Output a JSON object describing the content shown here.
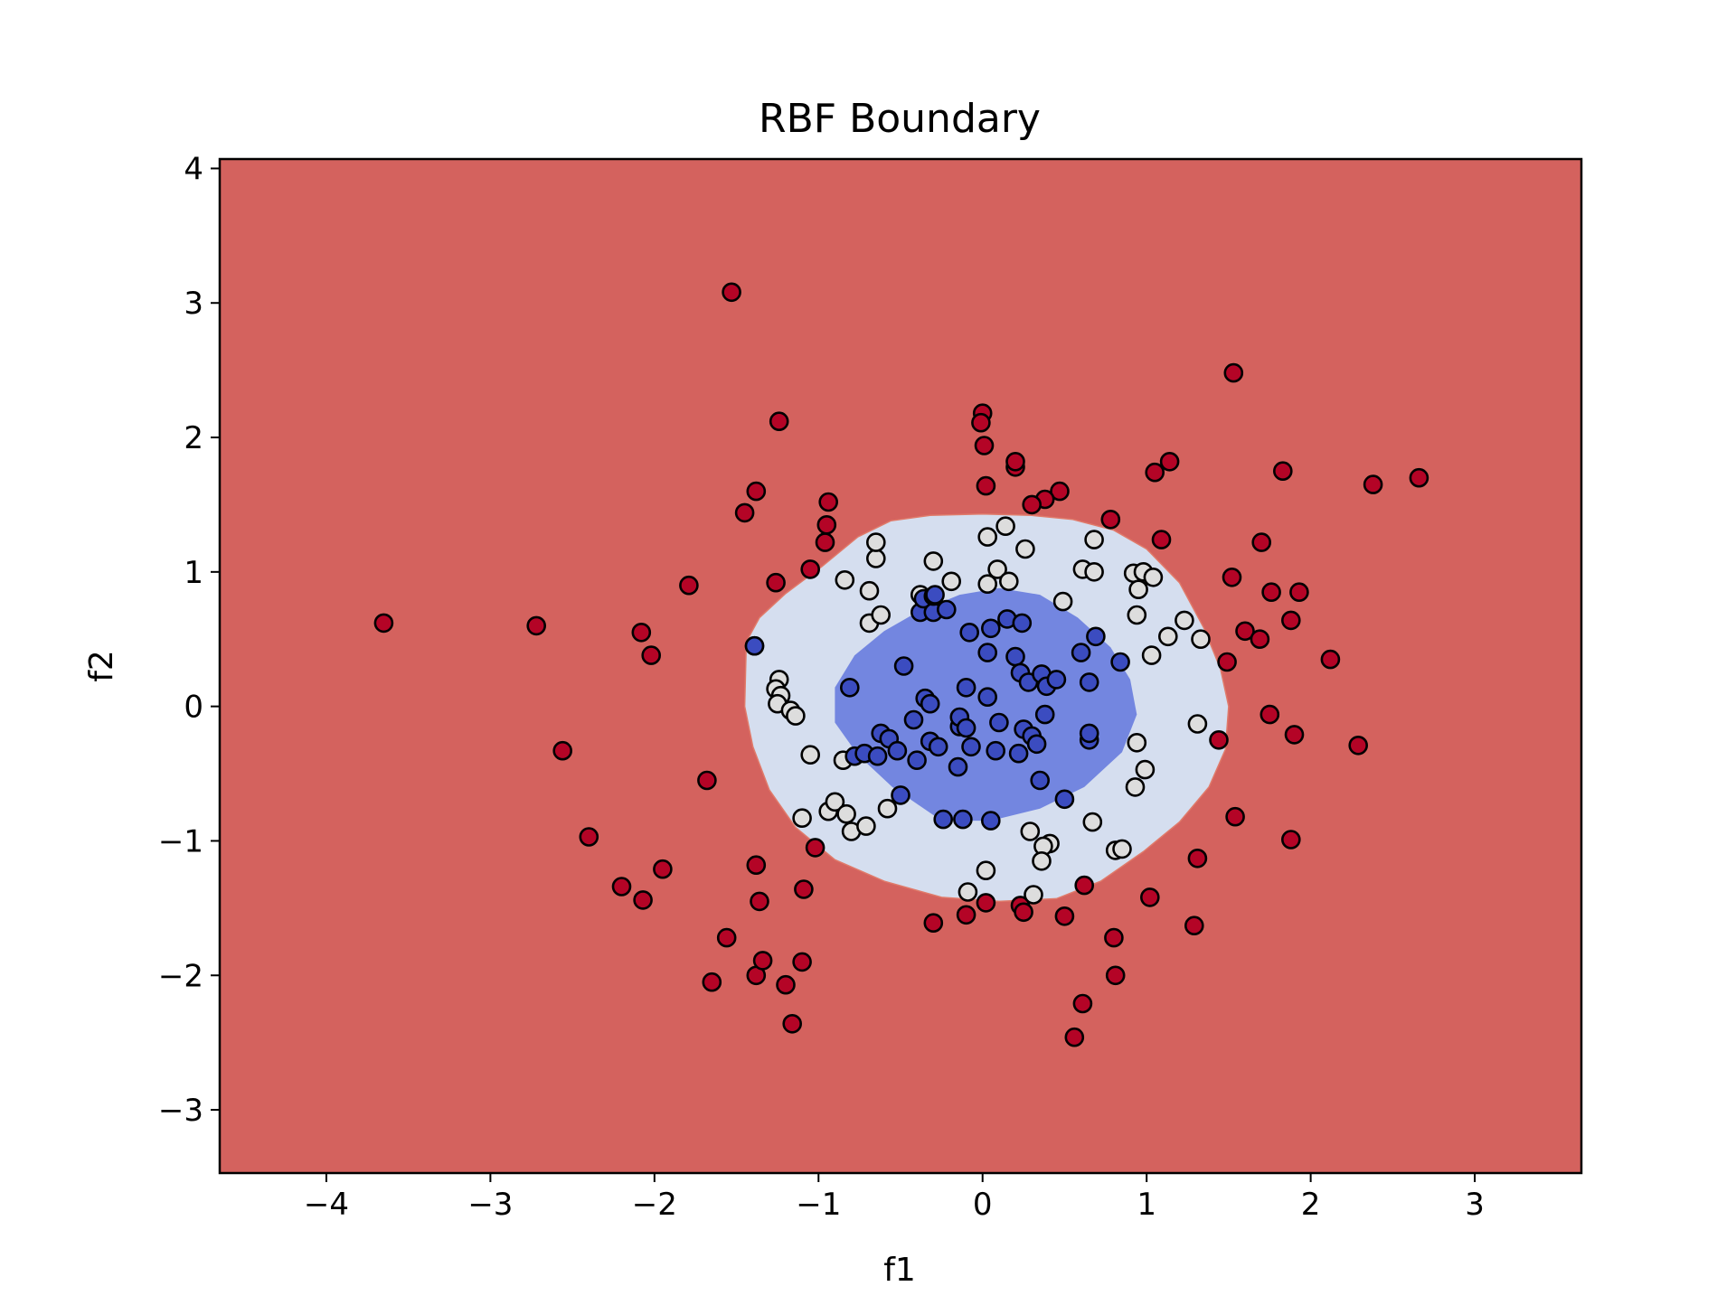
{
  "chart_data": {
    "type": "scatter",
    "title": "RBF Boundary",
    "xlabel": "f1",
    "ylabel": "f2",
    "xlim": [
      -4.65,
      3.65
    ],
    "ylim": [
      -3.47,
      4.07
    ],
    "xticks": [
      -4,
      -3,
      -2,
      -1,
      0,
      1,
      2,
      3
    ],
    "yticks": [
      -3,
      -2,
      -1,
      0,
      1,
      2,
      3,
      4
    ],
    "grid": false,
    "legend": "none",
    "colors": {
      "outer_region": "#d4625e",
      "ring_region": "#d5deef",
      "inner_region": "#7386e0",
      "outer_point": "#b40426",
      "ring_point": "#dddddd",
      "inner_point": "#3b4cc0",
      "point_edge": "#000000"
    },
    "regions": {
      "ring_boundary": [
        [
          -1.44,
          0.48
        ],
        [
          -1.36,
          0.66
        ],
        [
          -1.2,
          0.84
        ],
        [
          -0.98,
          1.04
        ],
        [
          -0.76,
          1.26
        ],
        [
          -0.56,
          1.38
        ],
        [
          -0.32,
          1.42
        ],
        [
          0.0,
          1.43
        ],
        [
          0.3,
          1.42
        ],
        [
          0.55,
          1.39
        ],
        [
          0.8,
          1.31
        ],
        [
          1.0,
          1.17
        ],
        [
          1.2,
          0.92
        ],
        [
          1.35,
          0.58
        ],
        [
          1.45,
          0.28
        ],
        [
          1.5,
          0.0
        ],
        [
          1.48,
          -0.32
        ],
        [
          1.38,
          -0.6
        ],
        [
          1.2,
          -0.86
        ],
        [
          0.98,
          -1.08
        ],
        [
          0.72,
          -1.3
        ],
        [
          0.45,
          -1.43
        ],
        [
          0.1,
          -1.45
        ],
        [
          -0.25,
          -1.42
        ],
        [
          -0.6,
          -1.3
        ],
        [
          -0.9,
          -1.14
        ],
        [
          -1.14,
          -0.9
        ],
        [
          -1.3,
          -0.62
        ],
        [
          -1.4,
          -0.3
        ],
        [
          -1.45,
          0.0
        ]
      ],
      "inner_boundary": [
        [
          -0.9,
          0.14
        ],
        [
          -0.78,
          0.38
        ],
        [
          -0.6,
          0.56
        ],
        [
          -0.4,
          0.7
        ],
        [
          -0.14,
          0.83
        ],
        [
          0.1,
          0.88
        ],
        [
          0.35,
          0.83
        ],
        [
          0.58,
          0.66
        ],
        [
          0.78,
          0.44
        ],
        [
          0.9,
          0.2
        ],
        [
          0.94,
          -0.06
        ],
        [
          0.85,
          -0.34
        ],
        [
          0.62,
          -0.6
        ],
        [
          0.35,
          -0.76
        ],
        [
          0.05,
          -0.85
        ],
        [
          -0.25,
          -0.85
        ],
        [
          -0.55,
          -0.6
        ],
        [
          -0.76,
          -0.36
        ],
        [
          -0.9,
          -0.12
        ]
      ]
    },
    "series": [
      {
        "class": "outer",
        "points": [
          [
            -3.65,
            0.62
          ],
          [
            -2.72,
            0.6
          ],
          [
            -2.56,
            -0.33
          ],
          [
            -2.4,
            -0.97
          ],
          [
            -2.2,
            -1.34
          ],
          [
            -2.07,
            -1.44
          ],
          [
            -1.95,
            -1.21
          ],
          [
            -2.08,
            0.55
          ],
          [
            -2.02,
            0.38
          ],
          [
            -1.79,
            0.9
          ],
          [
            -1.68,
            -0.55
          ],
          [
            -1.56,
            -1.72
          ],
          [
            -1.65,
            -2.05
          ],
          [
            -1.38,
            -2.0
          ],
          [
            -1.34,
            -1.89
          ],
          [
            -1.36,
            -1.45
          ],
          [
            -1.38,
            -1.18
          ],
          [
            -1.39,
            0.45
          ],
          [
            -1.45,
            1.44
          ],
          [
            -1.38,
            1.6
          ],
          [
            -1.26,
            0.92
          ],
          [
            -1.24,
            2.12
          ],
          [
            -1.2,
            -2.07
          ],
          [
            -1.16,
            -2.36
          ],
          [
            -1.1,
            -1.9
          ],
          [
            -1.09,
            -1.36
          ],
          [
            -1.05,
            1.02
          ],
          [
            -1.02,
            -1.05
          ],
          [
            -0.96,
            1.22
          ],
          [
            -0.95,
            1.35
          ],
          [
            -0.94,
            1.52
          ],
          [
            -1.53,
            3.08
          ],
          [
            -0.3,
            -1.61
          ],
          [
            -0.1,
            -1.55
          ],
          [
            0.02,
            -1.46
          ],
          [
            0.23,
            -1.48
          ],
          [
            0.25,
            -1.53
          ],
          [
            0.5,
            -1.56
          ],
          [
            0.62,
            -1.33
          ],
          [
            0.56,
            -2.46
          ],
          [
            0.61,
            -2.21
          ],
          [
            0.8,
            -1.72
          ],
          [
            0.81,
            -2.0
          ],
          [
            1.02,
            -1.42
          ],
          [
            1.29,
            -1.63
          ],
          [
            1.31,
            -1.13
          ],
          [
            1.54,
            -0.82
          ],
          [
            1.44,
            -0.25
          ],
          [
            1.49,
            0.33
          ],
          [
            1.52,
            0.96
          ],
          [
            1.6,
            0.56
          ],
          [
            1.69,
            0.5
          ],
          [
            1.7,
            1.22
          ],
          [
            1.75,
            -0.06
          ],
          [
            1.76,
            0.85
          ],
          [
            1.83,
            1.75
          ],
          [
            1.88,
            -0.99
          ],
          [
            1.88,
            0.64
          ],
          [
            1.9,
            -0.21
          ],
          [
            1.93,
            0.85
          ],
          [
            2.12,
            0.35
          ],
          [
            2.29,
            -0.29
          ],
          [
            2.38,
            1.65
          ],
          [
            2.66,
            1.7
          ],
          [
            1.53,
            2.48
          ],
          [
            1.14,
            1.82
          ],
          [
            1.05,
            1.74
          ],
          [
            1.09,
            1.24
          ],
          [
            0.78,
            1.39
          ],
          [
            0.47,
            1.6
          ],
          [
            0.38,
            1.54
          ],
          [
            0.3,
            1.5
          ],
          [
            0.2,
            1.78
          ],
          [
            0.2,
            1.82
          ],
          [
            0.02,
            1.64
          ],
          [
            0.01,
            1.94
          ],
          [
            0.0,
            2.18
          ],
          [
            -0.01,
            2.11
          ]
        ]
      },
      {
        "class": "ring",
        "points": [
          [
            -1.24,
            0.2
          ],
          [
            -1.26,
            0.13
          ],
          [
            -1.23,
            0.08
          ],
          [
            -1.25,
            0.02
          ],
          [
            -1.17,
            -0.03
          ],
          [
            -1.14,
            -0.07
          ],
          [
            -1.05,
            -0.36
          ],
          [
            -1.1,
            -0.83
          ],
          [
            -0.94,
            -0.78
          ],
          [
            -0.9,
            -0.71
          ],
          [
            -0.85,
            -0.4
          ],
          [
            -0.84,
            0.94
          ],
          [
            -0.83,
            -0.8
          ],
          [
            -0.8,
            -0.93
          ],
          [
            -0.71,
            -0.89
          ],
          [
            -0.69,
            0.62
          ],
          [
            -0.69,
            0.86
          ],
          [
            -0.65,
            1.1
          ],
          [
            -0.65,
            1.22
          ],
          [
            -0.62,
            0.68
          ],
          [
            -0.58,
            -0.76
          ],
          [
            -0.38,
            0.83
          ],
          [
            -0.3,
            1.08
          ],
          [
            -0.19,
            0.93
          ],
          [
            0.03,
            0.91
          ],
          [
            0.03,
            1.26
          ],
          [
            0.09,
            1.02
          ],
          [
            0.14,
            1.34
          ],
          [
            0.16,
            0.93
          ],
          [
            0.26,
            1.17
          ],
          [
            0.49,
            0.78
          ],
          [
            0.61,
            1.02
          ],
          [
            0.68,
            1.24
          ],
          [
            0.68,
            1.0
          ],
          [
            0.92,
            0.99
          ],
          [
            0.95,
            0.87
          ],
          [
            0.98,
            1.0
          ],
          [
            1.04,
            0.96
          ],
          [
            0.94,
            0.68
          ],
          [
            1.03,
            0.38
          ],
          [
            1.13,
            0.52
          ],
          [
            1.23,
            0.64
          ],
          [
            1.33,
            0.5
          ],
          [
            1.31,
            -0.13
          ],
          [
            0.94,
            -0.27
          ],
          [
            0.99,
            -0.47
          ],
          [
            0.93,
            -0.6
          ],
          [
            0.81,
            -1.07
          ],
          [
            0.85,
            -1.06
          ],
          [
            0.67,
            -0.86
          ],
          [
            0.41,
            -1.02
          ],
          [
            0.37,
            -1.04
          ],
          [
            0.36,
            -1.15
          ],
          [
            0.29,
            -0.93
          ],
          [
            0.31,
            -1.4
          ],
          [
            0.02,
            -1.22
          ],
          [
            -0.09,
            -1.38
          ]
        ]
      },
      {
        "class": "inner",
        "points": [
          [
            -1.39,
            0.45
          ],
          [
            -0.81,
            0.14
          ],
          [
            -0.78,
            -0.37
          ],
          [
            -0.72,
            -0.35
          ],
          [
            -0.64,
            -0.37
          ],
          [
            -0.62,
            -0.2
          ],
          [
            -0.57,
            -0.24
          ],
          [
            -0.52,
            -0.33
          ],
          [
            -0.5,
            -0.66
          ],
          [
            -0.48,
            0.3
          ],
          [
            -0.42,
            -0.1
          ],
          [
            -0.4,
            -0.4
          ],
          [
            -0.38,
            0.7
          ],
          [
            -0.36,
            0.8
          ],
          [
            -0.35,
            0.06
          ],
          [
            -0.32,
            -0.26
          ],
          [
            -0.32,
            0.02
          ],
          [
            -0.3,
            0.7
          ],
          [
            -0.3,
            0.82
          ],
          [
            -0.27,
            -0.3
          ],
          [
            -0.24,
            -0.84
          ],
          [
            -0.22,
            0.72
          ],
          [
            -0.15,
            -0.45
          ],
          [
            -0.14,
            -0.15
          ],
          [
            -0.14,
            -0.08
          ],
          [
            -0.12,
            -0.84
          ],
          [
            -0.1,
            0.14
          ],
          [
            -0.1,
            -0.16
          ],
          [
            -0.08,
            0.55
          ],
          [
            -0.07,
            -0.3
          ],
          [
            0.03,
            0.4
          ],
          [
            0.03,
            0.07
          ],
          [
            0.05,
            0.58
          ],
          [
            0.05,
            -0.85
          ],
          [
            0.08,
            -0.33
          ],
          [
            0.1,
            -0.12
          ],
          [
            0.15,
            0.65
          ],
          [
            0.2,
            0.37
          ],
          [
            0.22,
            -0.35
          ],
          [
            0.23,
            0.25
          ],
          [
            0.24,
            0.62
          ],
          [
            0.25,
            -0.17
          ],
          [
            0.28,
            0.18
          ],
          [
            0.3,
            -0.22
          ],
          [
            0.33,
            -0.28
          ],
          [
            0.35,
            -0.55
          ],
          [
            0.36,
            0.24
          ],
          [
            0.38,
            -0.06
          ],
          [
            0.39,
            0.15
          ],
          [
            0.45,
            0.2
          ],
          [
            0.5,
            -0.69
          ],
          [
            0.6,
            0.4
          ],
          [
            0.65,
            -0.25
          ],
          [
            0.65,
            -0.2
          ],
          [
            0.65,
            0.18
          ],
          [
            0.69,
            0.52
          ],
          [
            0.84,
            0.33
          ],
          [
            -0.29,
            0.83
          ]
        ]
      }
    ]
  }
}
